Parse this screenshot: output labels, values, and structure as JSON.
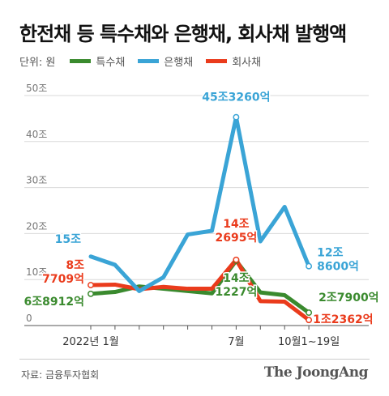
{
  "title": "한전채 등 특수채와 은행채, 회사채 발행액",
  "unit_label": "단위: 원",
  "source": "자료: 금융투자협회",
  "logo": "The JoongAng",
  "colors": {
    "special": "#3a8a2e",
    "bank": "#3aa4d6",
    "corp": "#ea3b1c",
    "grid": "#d9d9d9",
    "axis": "#555555"
  },
  "chart_data": {
    "type": "line",
    "unit": "조원",
    "ylim": [
      0,
      50
    ],
    "yticks": [
      0,
      10,
      20,
      30,
      40,
      50
    ],
    "ytick_labels": [
      "0",
      "10조",
      "20조",
      "30조",
      "40조",
      "50조"
    ],
    "x": [
      "2022-01",
      "2022-02",
      "2022-03",
      "2022-04",
      "2022-05",
      "2022-06",
      "2022-07",
      "2022-08",
      "2022-09",
      "2022-10"
    ],
    "xtick_labels": [
      {
        "index": 0,
        "label": "2022년 1월"
      },
      {
        "index": 6,
        "label": "7월"
      },
      {
        "index": 9,
        "label": "10월1~19일"
      }
    ],
    "series": [
      {
        "name": "특수채",
        "color_key": "special",
        "values": [
          6.9,
          7.3,
          8.5,
          8.0,
          7.5,
          7.0,
          14.1,
          7.2,
          6.6,
          2.8
        ]
      },
      {
        "name": "은행채",
        "color_key": "bank",
        "values": [
          15.0,
          13.2,
          7.5,
          10.5,
          19.8,
          20.6,
          45.3,
          18.3,
          25.8,
          12.9
        ]
      },
      {
        "name": "회사채",
        "color_key": "corp",
        "values": [
          8.8,
          8.9,
          7.9,
          8.4,
          8.0,
          8.0,
          14.3,
          5.3,
          5.2,
          1.2
        ]
      }
    ],
    "annotations": [
      {
        "series": 1,
        "index": 0,
        "lines": [
          "15조"
        ],
        "color_key": "bank"
      },
      {
        "series": 2,
        "index": 0,
        "lines": [
          "8조",
          "7709억"
        ],
        "color_key": "corp"
      },
      {
        "series": 0,
        "index": 0,
        "lines": [
          "6조8912억"
        ],
        "color_key": "special"
      },
      {
        "series": 1,
        "index": 6,
        "lines": [
          "45조3260억"
        ],
        "color_key": "bank"
      },
      {
        "series": 2,
        "index": 6,
        "lines": [
          "14조",
          "2695억"
        ],
        "color_key": "corp"
      },
      {
        "series": 0,
        "index": 6,
        "lines": [
          "14조",
          "1227억"
        ],
        "color_key": "special"
      },
      {
        "series": 1,
        "index": 9,
        "lines": [
          "12조",
          "8600억"
        ],
        "color_key": "bank"
      },
      {
        "series": 0,
        "index": 9,
        "lines": [
          "2조7900억"
        ],
        "color_key": "special"
      },
      {
        "series": 2,
        "index": 9,
        "lines": [
          "1조2362억"
        ],
        "color_key": "corp"
      }
    ]
  }
}
